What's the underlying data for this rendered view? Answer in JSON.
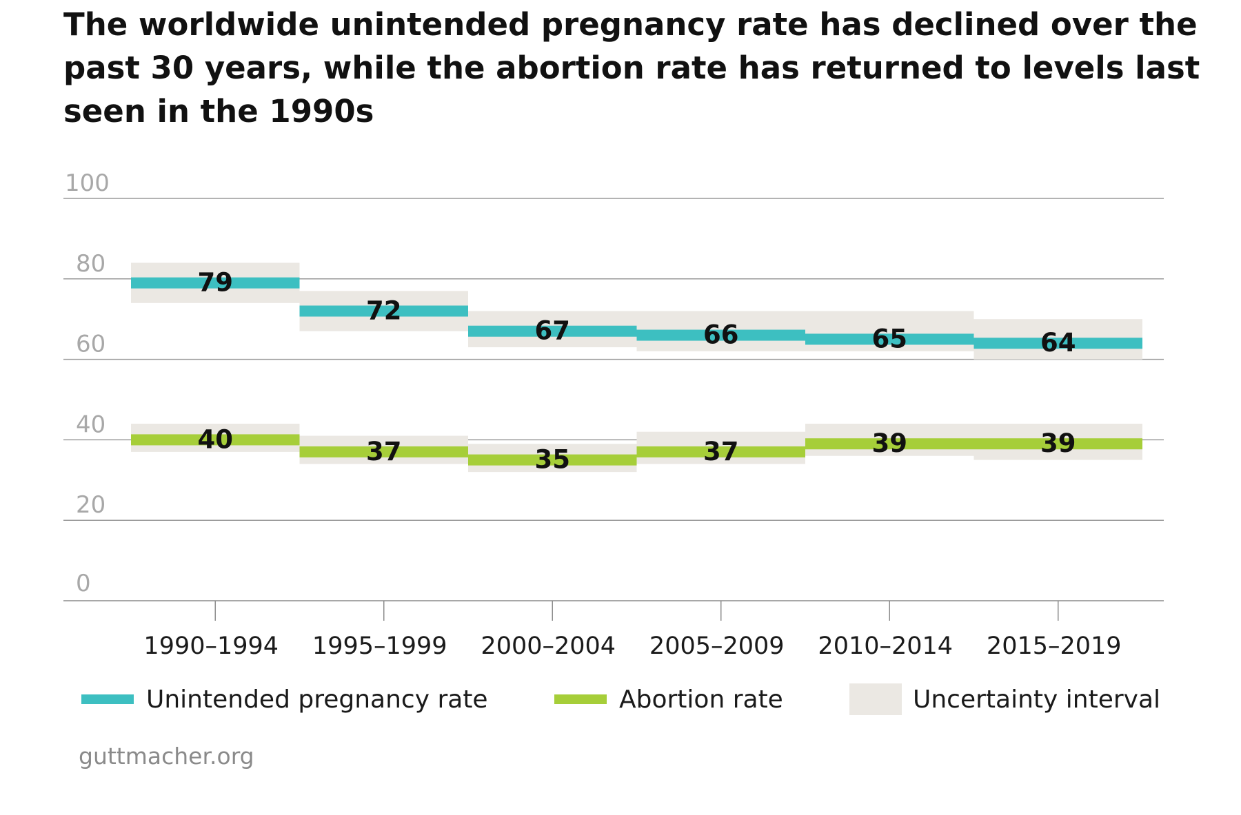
{
  "chart_data": {
    "type": "line",
    "title": "The worldwide unintended pregnancy rate has declined over the past 30 years, while the abortion rate has returned to levels last seen in the 1990s",
    "categories": [
      "1990–1994",
      "1995–1999",
      "2000–2004",
      "2005–2009",
      "2010–2014",
      "2015–2019"
    ],
    "ylim": [
      0,
      100
    ],
    "yticks": [
      0,
      20,
      40,
      60,
      80,
      100
    ],
    "grid": true,
    "series": [
      {
        "name": "Unintended pregnancy rate",
        "color": "#3dbfc1",
        "values": [
          79,
          72,
          67,
          66,
          65,
          64
        ],
        "interval_low": [
          74,
          67,
          63,
          62,
          62,
          60
        ],
        "interval_high": [
          84,
          77,
          72,
          72,
          72,
          70
        ]
      },
      {
        "name": "Abortion rate",
        "color": "#a6ce39",
        "values": [
          40,
          37,
          35,
          37,
          39,
          39
        ],
        "interval_low": [
          37,
          34,
          32,
          34,
          36,
          35
        ],
        "interval_high": [
          44,
          41,
          39,
          42,
          44,
          44
        ]
      }
    ],
    "interval_label": "Uncertainty interval",
    "interval_color": "#ebe8e3"
  },
  "legend": {
    "items": [
      {
        "label": "Unintended pregnancy rate",
        "color": "#3dbfc1",
        "kind": "line"
      },
      {
        "label": "Abortion rate",
        "color": "#a6ce39",
        "kind": "line"
      },
      {
        "label": "Uncertainty interval",
        "color": "#ebe8e3",
        "kind": "box"
      }
    ]
  },
  "source": "guttmacher.org"
}
